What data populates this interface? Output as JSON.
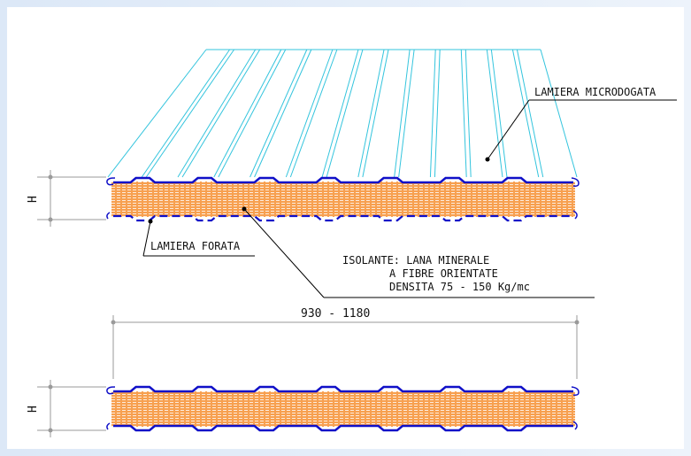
{
  "labels": {
    "top_sheet": "LAMIERA MICRODOGATA",
    "bottom_sheet": "LAMIERA FORATA",
    "insulation_line1": "ISOLANTE: LANA MINERALE",
    "insulation_line2": "A FIBRE ORIENTATE",
    "insulation_line3": "DENSITA 75 - 150 Kg/mc",
    "width_dimension": "930 - 1180",
    "height_symbol_top": "H",
    "height_symbol_bottom": "H"
  },
  "colors": {
    "sheet_lines": "#33c4dd",
    "panel_outline": "#1010c8",
    "insulation_fill": "#f7a050",
    "insulation_lines": "#ffffff",
    "dimension_lines": "#9a9a9a",
    "leader_lines": "#000000"
  }
}
